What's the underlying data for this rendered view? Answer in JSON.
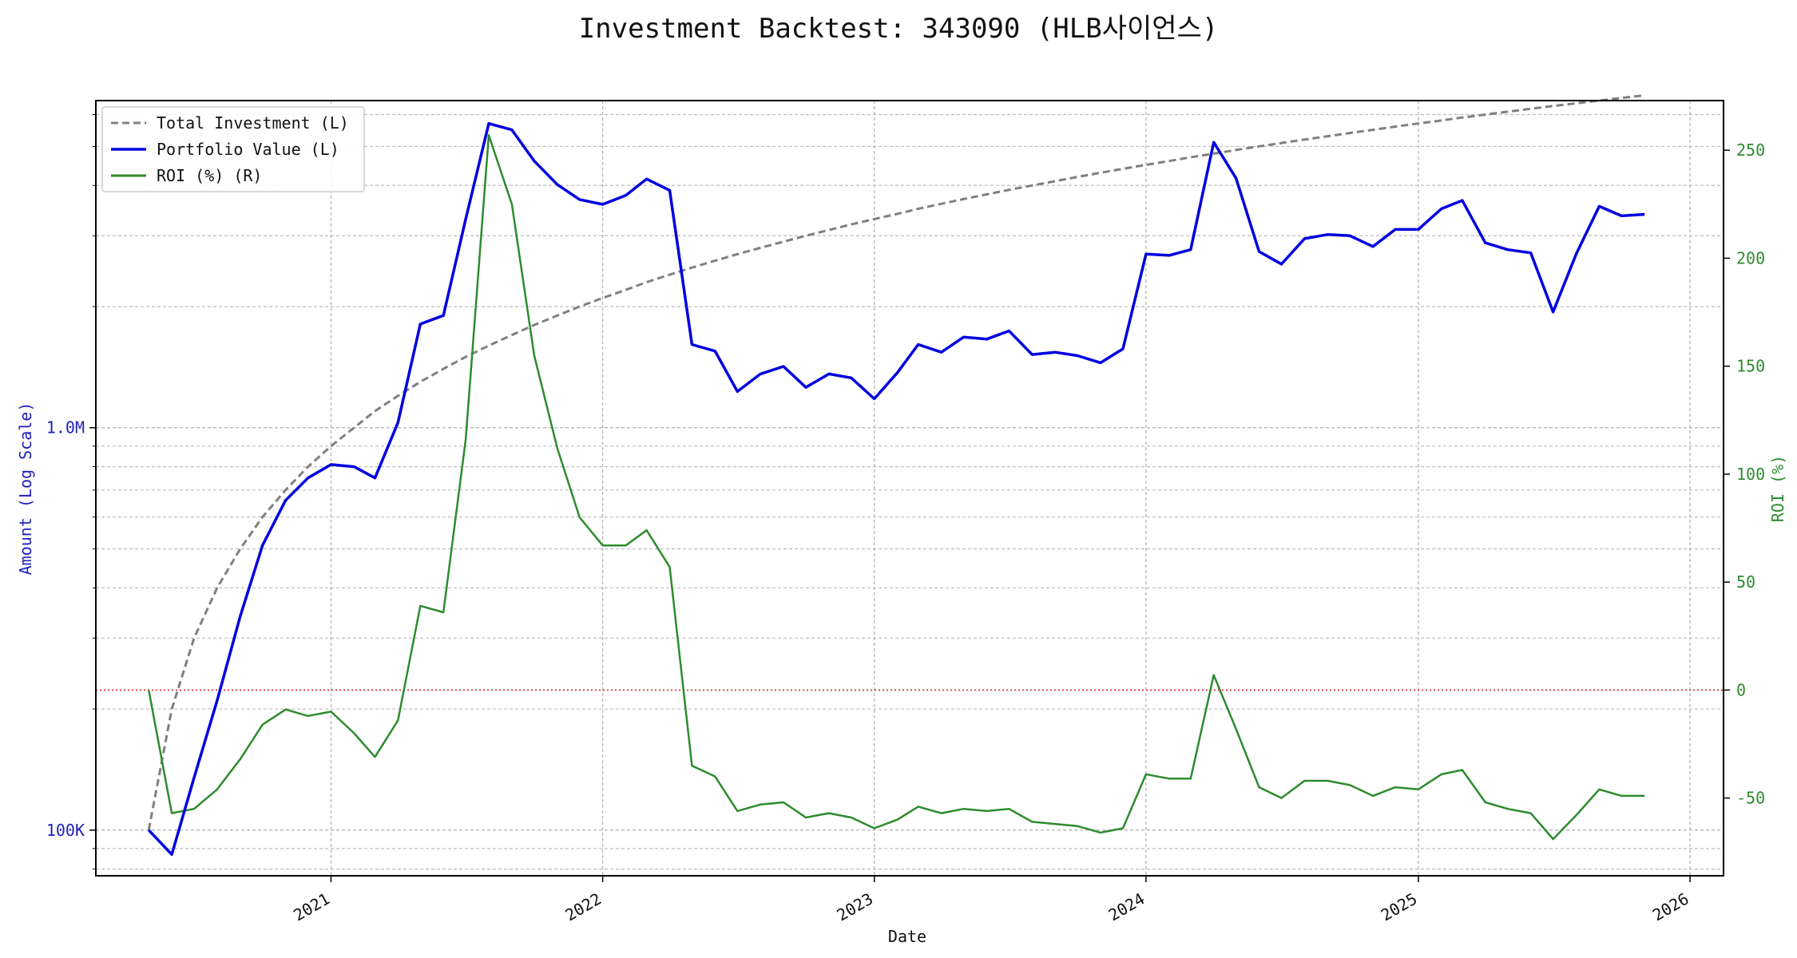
{
  "chart_data": {
    "type": "line",
    "title": "Investment Backtest: 343090 (HLB사이언스)",
    "xlabel": "Date",
    "ylabel_left": "Amount (Log Scale)",
    "ylabel_right": "ROI (%)",
    "left_scale": "log",
    "left_ylim": [
      77000,
      6500000
    ],
    "right_ylim": [
      -86,
      273
    ],
    "grid": true,
    "legend_position": "top-left",
    "x_ticks": [
      "2021",
      "2022",
      "2023",
      "2024",
      "2025",
      "2026"
    ],
    "left_ticks": [
      {
        "value": 100000,
        "label": "100K"
      },
      {
        "value": 1000000,
        "label": "1.0M"
      }
    ],
    "right_ticks": [
      -50,
      0,
      50,
      100,
      150,
      200,
      250
    ],
    "reference_line": {
      "axis": "right",
      "value": 0,
      "color": "#d62728",
      "style": "dotted"
    },
    "colors": {
      "total_investment": "#808080",
      "portfolio_value": "#0000e0",
      "roi": "#2e8b2e",
      "left_axis_text": "#1f1fbf",
      "right_axis_text": "#2e8b2e"
    },
    "x_dates": [
      "2020-05-01",
      "2020-06-01",
      "2020-07-01",
      "2020-08-01",
      "2020-09-01",
      "2020-10-01",
      "2020-11-01",
      "2020-12-01",
      "2021-01-01",
      "2021-02-01",
      "2021-03-01",
      "2021-04-01",
      "2021-05-01",
      "2021-06-01",
      "2021-07-01",
      "2021-08-01",
      "2021-09-01",
      "2021-10-01",
      "2021-11-01",
      "2021-12-01",
      "2022-01-01",
      "2022-02-01",
      "2022-03-01",
      "2022-04-01",
      "2022-05-01",
      "2022-06-01",
      "2022-07-01",
      "2022-08-01",
      "2022-09-01",
      "2022-10-01",
      "2022-11-01",
      "2022-12-01",
      "2023-01-01",
      "2023-02-01",
      "2023-03-01",
      "2023-04-01",
      "2023-05-01",
      "2023-06-01",
      "2023-07-01",
      "2023-08-01",
      "2023-09-01",
      "2023-10-01",
      "2023-11-01",
      "2023-12-01",
      "2024-01-01",
      "2024-02-01",
      "2024-03-01",
      "2024-04-01",
      "2024-05-01",
      "2024-06-01",
      "2024-07-01",
      "2024-08-01",
      "2024-09-01",
      "2024-10-01",
      "2024-11-01",
      "2024-12-01",
      "2025-01-01",
      "2025-02-01",
      "2025-03-01",
      "2025-04-01",
      "2025-05-01",
      "2025-06-01",
      "2025-07-01",
      "2025-08-01",
      "2025-09-01",
      "2025-10-01",
      "2025-11-01"
    ],
    "series": [
      {
        "name": "Total Investment (L)",
        "axis": "left",
        "style": "dashed",
        "values": [
          100000,
          200000,
          300000,
          400000,
          500000,
          600000,
          700000,
          800000,
          900000,
          1000000,
          1100000,
          1200000,
          1300000,
          1400000,
          1500000,
          1600000,
          1700000,
          1800000,
          1900000,
          2000000,
          2100000,
          2200000,
          2300000,
          2400000,
          2500000,
          2600000,
          2700000,
          2800000,
          2900000,
          3000000,
          3100000,
          3200000,
          3300000,
          3400000,
          3500000,
          3600000,
          3700000,
          3800000,
          3900000,
          4000000,
          4100000,
          4200000,
          4300000,
          4400000,
          4500000,
          4600000,
          4700000,
          4800000,
          4900000,
          5000000,
          5100000,
          5200000,
          5300000,
          5400000,
          5500000,
          5600000,
          5700000,
          5800000,
          5900000,
          6000000,
          6100000,
          6200000,
          6300000,
          6400000,
          6500000,
          6600000,
          6700000
        ]
      },
      {
        "name": "Portfolio Value (L)",
        "axis": "left",
        "style": "solid",
        "values": [
          100000,
          87000,
          135000,
          210000,
          340000,
          510000,
          660000,
          750000,
          810000,
          800000,
          750000,
          1030000,
          1810000,
          1900000,
          3300000,
          5700000,
          5500000,
          4600000,
          4020000,
          3690000,
          3590000,
          3780000,
          4150000,
          3890000,
          1610000,
          1550000,
          1230000,
          1360000,
          1420000,
          1260000,
          1360000,
          1330000,
          1180000,
          1370000,
          1610000,
          1540000,
          1680000,
          1660000,
          1740000,
          1520000,
          1540000,
          1510000,
          1450000,
          1570000,
          2700000,
          2680000,
          2770000,
          5120000,
          4170000,
          2740000,
          2550000,
          2950000,
          3020000,
          3000000,
          2820000,
          3110000,
          3110000,
          3500000,
          3670000,
          2880000,
          2770000,
          2720000,
          1940000,
          2700000,
          3550000,
          3360000,
          3390000
        ]
      },
      {
        "name": "ROI (%) (R)",
        "axis": "right",
        "style": "solid",
        "values": [
          0,
          -57,
          -55,
          -46,
          -32,
          -16,
          -9,
          -12,
          -10,
          -20,
          -31,
          -14,
          39,
          36,
          116,
          257,
          225,
          155,
          112,
          80,
          67,
          67,
          74,
          57,
          -35,
          -40,
          -56,
          -53,
          -52,
          -59,
          -57,
          -59,
          -64,
          -60,
          -54,
          -57,
          -55,
          -56,
          -55,
          -61,
          -62,
          -63,
          -66,
          -64,
          -39,
          -41,
          -41,
          7,
          -18,
          -45,
          -50,
          -42,
          -42,
          -44,
          -49,
          -45,
          -46,
          -39,
          -37,
          -52,
          -55,
          -57,
          -69,
          -58,
          -46,
          -49,
          -49
        ]
      }
    ]
  }
}
